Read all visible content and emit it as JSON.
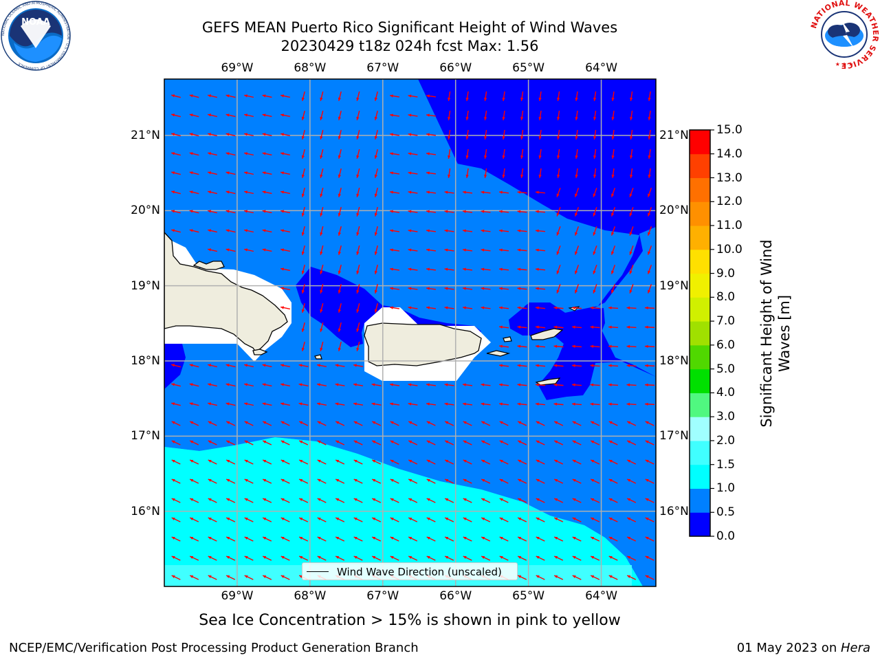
{
  "header": {
    "title_line1": "GEFS MEAN Puerto Rico Significant Height of Wind Waves",
    "title_line2": "20230429 t18z 024h fcst   Max: 1.56"
  },
  "logos": {
    "noaa": {
      "text": "NOAA",
      "ring_text": "NATIONAL OCEANIC AND ATMOSPHERIC ADMINISTRATION · U.S. DEPARTMENT OF COMMERCE"
    },
    "nws": {
      "ring_text": "NATIONAL WEATHER SERVICE"
    }
  },
  "map": {
    "lon_ticks": [
      "69°W",
      "68°W",
      "67°W",
      "66°W",
      "65°W",
      "64°W"
    ],
    "lon_values": [
      -69,
      -68,
      -67,
      -66,
      -65,
      -64
    ],
    "lat_ticks": [
      "21°N",
      "20°N",
      "19°N",
      "18°N",
      "17°N",
      "16°N"
    ],
    "lat_values": [
      21,
      20,
      19,
      18,
      17,
      16
    ],
    "lon_range": [
      -70,
      -63.25
    ],
    "lat_range": [
      15,
      21.75
    ],
    "legend_label": "Wind Wave Direction (unscaled)",
    "arrow_color": "#ff0000",
    "land_color": "#efedde",
    "ice_note": "Sea Ice Concentration > 15% is shown in pink to yellow"
  },
  "colorbar": {
    "label": "Significant Height of Wind Waves [m]",
    "tick_labels": [
      "15.0",
      "14.0",
      "13.0",
      "12.0",
      "11.0",
      "10.0",
      "9.0",
      "8.0",
      "7.0",
      "6.0",
      "5.0",
      "4.0",
      "3.0",
      "2.0",
      "1.5",
      "1.0",
      "0.5",
      "0.0"
    ],
    "levels": [
      0.0,
      0.5,
      1.0,
      1.5,
      2.0,
      3.0,
      4.0,
      5.0,
      6.0,
      7.0,
      8.0,
      9.0,
      10.0,
      11.0,
      12.0,
      13.0,
      14.0,
      15.0
    ],
    "colors": [
      "#0000ff",
      "#0080ff",
      "#00ffff",
      "#40ffff",
      "#a0ffff",
      "#50f880",
      "#00e000",
      "#50d800",
      "#a0e000",
      "#d0f000",
      "#f0f000",
      "#ffe000",
      "#ffb000",
      "#ff9000",
      "#ff7000",
      "#ff4000",
      "#ff0000"
    ]
  },
  "footer": {
    "left": "NCEP/EMC/Verification Post Processing Product Generation Branch",
    "right_date": "01 May 2023 on ",
    "right_host": "Hera"
  }
}
